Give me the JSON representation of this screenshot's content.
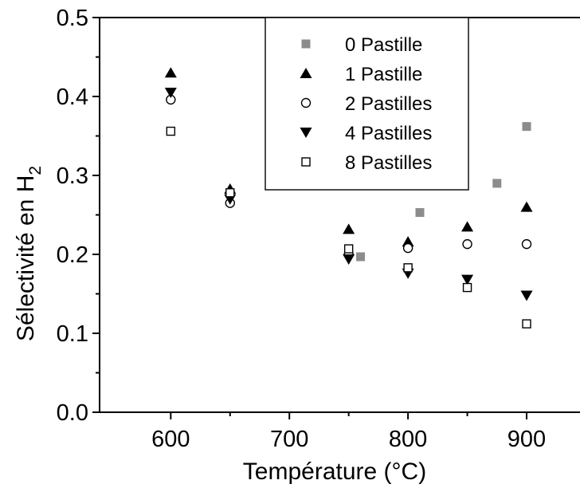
{
  "chart_data": {
    "type": "scatter",
    "title": "",
    "xlabel": "Température (°C)",
    "ylabel_main": "Sélectivité en H",
    "ylabel_sub": "2",
    "xlim": [
      540,
      945
    ],
    "ylim": [
      0.0,
      0.5
    ],
    "x_ticks": [
      600,
      700,
      800,
      900
    ],
    "x_tick_labels": [
      "600",
      "700",
      "800",
      "900"
    ],
    "x_minor_ticks": [
      650,
      750,
      850
    ],
    "y_ticks": [
      0.0,
      0.1,
      0.2,
      0.3,
      0.4,
      0.5
    ],
    "y_tick_labels": [
      "0.0",
      "0.1",
      "0.2",
      "0.3",
      "0.4",
      "0.5"
    ],
    "y_minor_ticks": [
      0.05,
      0.15,
      0.25,
      0.35,
      0.45
    ],
    "grid": false,
    "legend_position": "top-right",
    "series": [
      {
        "name": "0 Pastille",
        "marker": "square-filled",
        "color": "#8c8c8c",
        "points": [
          [
            760,
            0.197
          ],
          [
            810,
            0.253
          ],
          [
            875,
            0.29
          ],
          [
            900,
            0.362
          ]
        ]
      },
      {
        "name": "1 Pastille",
        "marker": "triangle-up",
        "color": "#000000",
        "points": [
          [
            600,
            0.43
          ],
          [
            650,
            0.283
          ],
          [
            750,
            0.232
          ],
          [
            800,
            0.216
          ],
          [
            850,
            0.235
          ],
          [
            900,
            0.26
          ]
        ]
      },
      {
        "name": "2 Pastilles",
        "marker": "circle-open",
        "color": "#000000",
        "points": [
          [
            600,
            0.396
          ],
          [
            650,
            0.265
          ],
          [
            750,
            0.2
          ],
          [
            800,
            0.208
          ],
          [
            850,
            0.213
          ],
          [
            900,
            0.213
          ]
        ]
      },
      {
        "name": "4 Pastilles",
        "marker": "triangle-down",
        "color": "#000000",
        "points": [
          [
            600,
            0.405
          ],
          [
            650,
            0.27
          ],
          [
            750,
            0.194
          ],
          [
            800,
            0.176
          ],
          [
            850,
            0.168
          ],
          [
            900,
            0.148
          ]
        ]
      },
      {
        "name": "8 Pastilles",
        "marker": "square-open",
        "color": "#000000",
        "points": [
          [
            600,
            0.356
          ],
          [
            650,
            0.278
          ],
          [
            750,
            0.207
          ],
          [
            800,
            0.183
          ],
          [
            850,
            0.158
          ],
          [
            900,
            0.112
          ]
        ]
      }
    ]
  }
}
